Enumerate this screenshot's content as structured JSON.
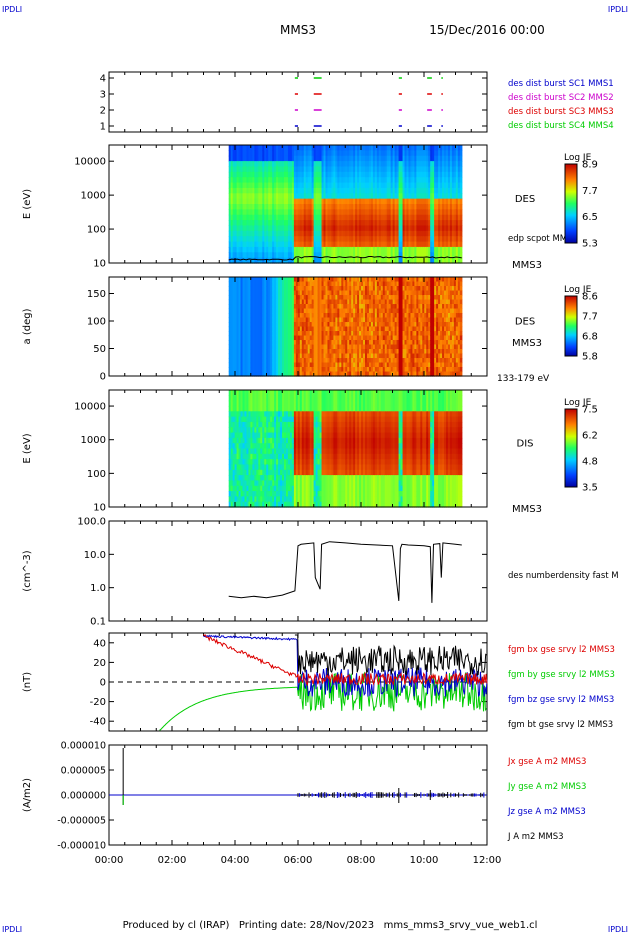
{
  "header": {
    "logo_left": "IPDLI",
    "logo_right": "IPDLI",
    "title": "MMS3",
    "date": "15/Dec/2016 00:00"
  },
  "footer": {
    "text": "Produced by cl (IRAP)   Printing date: 28/Nov/2023   mms_mms3_srvy_vue_web1.cl",
    "logo_left": "IPDLI",
    "logo_right": "IPDLI"
  },
  "colors": {
    "blue": "#0000cc",
    "magenta": "#cc00cc",
    "red": "#dd0000",
    "green": "#00cc00",
    "black": "#000000"
  },
  "chart_data": [
    {
      "type": "scatter",
      "panel": "availability",
      "yticks": [
        "4",
        "3",
        "2",
        "1"
      ],
      "legend": [
        {
          "label": "des dist burst SC1 MMS1",
          "color": "#0000cc"
        },
        {
          "label": "des dist burst SC2 MMS2",
          "color": "#cc00cc"
        },
        {
          "label": "des dist burst SC3 MMS3",
          "color": "#dd0000"
        },
        {
          "label": "des dist burst SC4 MMS4",
          "color": "#00cc00"
        }
      ],
      "intervals": [
        [
          5.9,
          6.0
        ],
        [
          6.5,
          6.75
        ],
        [
          9.2,
          9.3
        ],
        [
          10.1,
          10.25
        ],
        [
          10.55,
          10.6
        ]
      ]
    },
    {
      "type": "heatmap",
      "panel": "des-energy",
      "ylabel": "E (eV)",
      "yscale": "log",
      "ylim": [
        10,
        30000
      ],
      "yticks": [
        "10000",
        "1000",
        "100",
        "10"
      ],
      "right_label": "DES",
      "extra_label": "edp scpot MMS3",
      "sc_label": "MMS3",
      "colorbar": {
        "title": "Log JE",
        "ticks": [
          "8.9",
          "7.7",
          "6.5",
          "5.3"
        ]
      },
      "coverage": [
        3.8,
        11.2
      ]
    },
    {
      "type": "heatmap",
      "panel": "des-pitch",
      "ylabel": "a (deg)",
      "ylim": [
        0,
        180
      ],
      "yticks": [
        "150",
        "100",
        "50",
        "0"
      ],
      "right_label": "DES",
      "sc_label": "MMS3",
      "energy_label": "133-179 eV",
      "colorbar": {
        "title": "Log JE",
        "ticks": [
          "8.6",
          "7.7",
          "6.8",
          "5.8"
        ]
      },
      "coverage": [
        3.8,
        11.2
      ]
    },
    {
      "type": "heatmap",
      "panel": "dis-energy",
      "ylabel": "E (eV)",
      "yscale": "log",
      "ylim": [
        10,
        30000
      ],
      "yticks": [
        "10000",
        "1000",
        "100",
        "10"
      ],
      "right_label": "DIS",
      "sc_label": "MMS3",
      "colorbar": {
        "title": "Log JE",
        "ticks": [
          "7.5",
          "6.2",
          "4.8",
          "3.5"
        ]
      },
      "coverage": [
        3.8,
        11.2
      ]
    },
    {
      "type": "line",
      "panel": "density",
      "ylabel": "(cm^-3)",
      "yscale": "log",
      "ylim": [
        0.1,
        100
      ],
      "yticks": [
        "100.0",
        "10.0",
        "1.0",
        "0.1"
      ],
      "series": [
        {
          "name": "des numberdensity fast M",
          "color": "#000000"
        }
      ],
      "x": [
        3.8,
        4.2,
        4.6,
        5.0,
        5.5,
        5.9,
        6.0,
        6.1,
        6.5,
        6.55,
        6.7,
        6.75,
        7.0,
        7.5,
        8.0,
        8.5,
        9.0,
        9.2,
        9.25,
        9.3,
        9.5,
        10.0,
        10.2,
        10.25,
        10.3,
        10.5,
        10.55,
        10.6,
        11.0,
        11.2
      ],
      "y": [
        0.55,
        0.5,
        0.55,
        0.5,
        0.6,
        0.8,
        18,
        20,
        22,
        2.0,
        0.9,
        20,
        24,
        22,
        20,
        19,
        18,
        0.4,
        15,
        20,
        19,
        18,
        17,
        0.35,
        20,
        21,
        2.0,
        22,
        20,
        19
      ]
    },
    {
      "type": "line",
      "panel": "magnetic-field",
      "ylabel": "(nT)",
      "ylim": [
        -50,
        50
      ],
      "yticks": [
        "40",
        "20",
        "0",
        "-20",
        "-40"
      ],
      "series": [
        {
          "name": "fgm bx gse srvy l2 MMS3",
          "color": "#dd0000"
        },
        {
          "name": "fgm by gse srvy l2 MMS3",
          "color": "#00cc00"
        },
        {
          "name": "fgm bz gse srvy l2 MMS3",
          "color": "#0000cc"
        },
        {
          "name": "fgm bt gse srvy l2 MMS3",
          "color": "#000000"
        }
      ]
    },
    {
      "type": "line",
      "panel": "current",
      "ylabel": "(A/m2)",
      "ylim": [
        -0.0001,
        0.0001
      ],
      "yticks": [
        "0.000010",
        "0.000005",
        "0.000000",
        "-0.000005",
        "-0.000010"
      ],
      "series": [
        {
          "name": "Jx gse A m2 MMS3",
          "color": "#dd0000"
        },
        {
          "name": "Jy gse A m2 MMS3",
          "color": "#00cc00"
        },
        {
          "name": "Jz gse A m2 MMS3",
          "color": "#0000cc"
        },
        {
          "name": "J A m2 MMS3",
          "color": "#000000"
        }
      ],
      "xticks": [
        "00:00",
        "02:00",
        "04:00",
        "06:00",
        "08:00",
        "10:00",
        "12:00"
      ],
      "xlim": [
        0,
        12
      ]
    }
  ]
}
